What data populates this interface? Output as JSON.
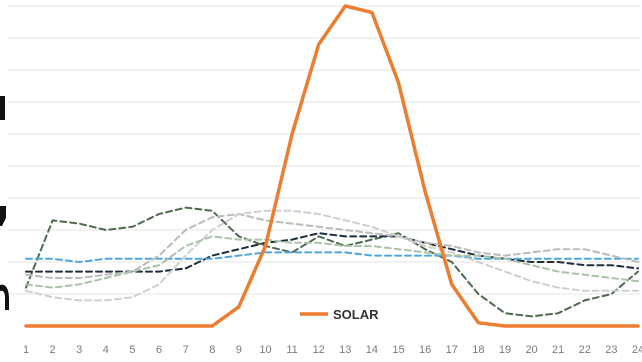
{
  "chart_data": {
    "type": "line",
    "x": [
      1,
      2,
      3,
      4,
      5,
      6,
      7,
      8,
      9,
      10,
      11,
      12,
      13,
      14,
      15,
      16,
      17,
      18,
      19,
      20,
      21,
      22,
      23,
      24
    ],
    "x_tick_labels": [
      "1",
      "2",
      "3",
      "4",
      "5",
      "6",
      "7",
      "8",
      "9",
      "10",
      "11",
      "12",
      "13",
      "14",
      "15",
      "16",
      "17",
      "18",
      "19",
      "20",
      "21",
      "22",
      "23",
      "24"
    ],
    "ylim": [
      0,
      100
    ],
    "grid": true,
    "legend": {
      "position": "bottom-center",
      "entries": [
        "SOLAR"
      ]
    },
    "series": [
      {
        "name": "SOLAR",
        "color": "#ED7D31",
        "style": "solid",
        "values": [
          0,
          0,
          0,
          0,
          0,
          0,
          0,
          0,
          6,
          25,
          60,
          88,
          100,
          98,
          76,
          42,
          13,
          1,
          0,
          0,
          0,
          0,
          0,
          0
        ]
      },
      {
        "color": "#4E6B4E",
        "style": "dashed",
        "values": [
          12,
          33,
          32,
          30,
          31,
          35,
          37,
          36,
          28,
          25,
          23,
          28,
          25,
          27,
          29,
          24,
          20,
          10,
          4,
          3,
          4,
          8,
          10,
          17
        ]
      },
      {
        "color": "#1F2D3D",
        "style": "dashed",
        "values": [
          17,
          17,
          17,
          17,
          17,
          17,
          18,
          22,
          24,
          26,
          27,
          29,
          28,
          28,
          28,
          26,
          24,
          22,
          21,
          20,
          20,
          19,
          19,
          18
        ]
      },
      {
        "color": "#4BA8E0",
        "style": "dashed",
        "values": [
          21,
          21,
          20,
          21,
          21,
          21,
          21,
          21,
          22,
          23,
          23,
          23,
          23,
          22,
          22,
          22,
          22,
          21,
          21,
          21,
          21,
          21,
          21,
          21
        ]
      },
      {
        "color": "#BBBBBB",
        "style": "dashed",
        "values": [
          16,
          15,
          15,
          16,
          17,
          22,
          30,
          34,
          35,
          33,
          32,
          31,
          30,
          29,
          28,
          26,
          25,
          23,
          22,
          23,
          24,
          24,
          22,
          20
        ]
      },
      {
        "color": "#CFCFCF",
        "style": "dashed",
        "values": [
          11,
          9,
          8,
          8,
          9,
          13,
          22,
          30,
          35,
          36,
          36,
          35,
          33,
          31,
          28,
          25,
          23,
          20,
          17,
          14,
          12,
          11,
          11,
          11
        ]
      },
      {
        "color": "#A9C4A9",
        "style": "dashed",
        "values": [
          13,
          12,
          13,
          15,
          17,
          19,
          25,
          28,
          27,
          27,
          26,
          26,
          25,
          25,
          24,
          23,
          22,
          22,
          21,
          19,
          17,
          16,
          15,
          14
        ]
      }
    ]
  }
}
